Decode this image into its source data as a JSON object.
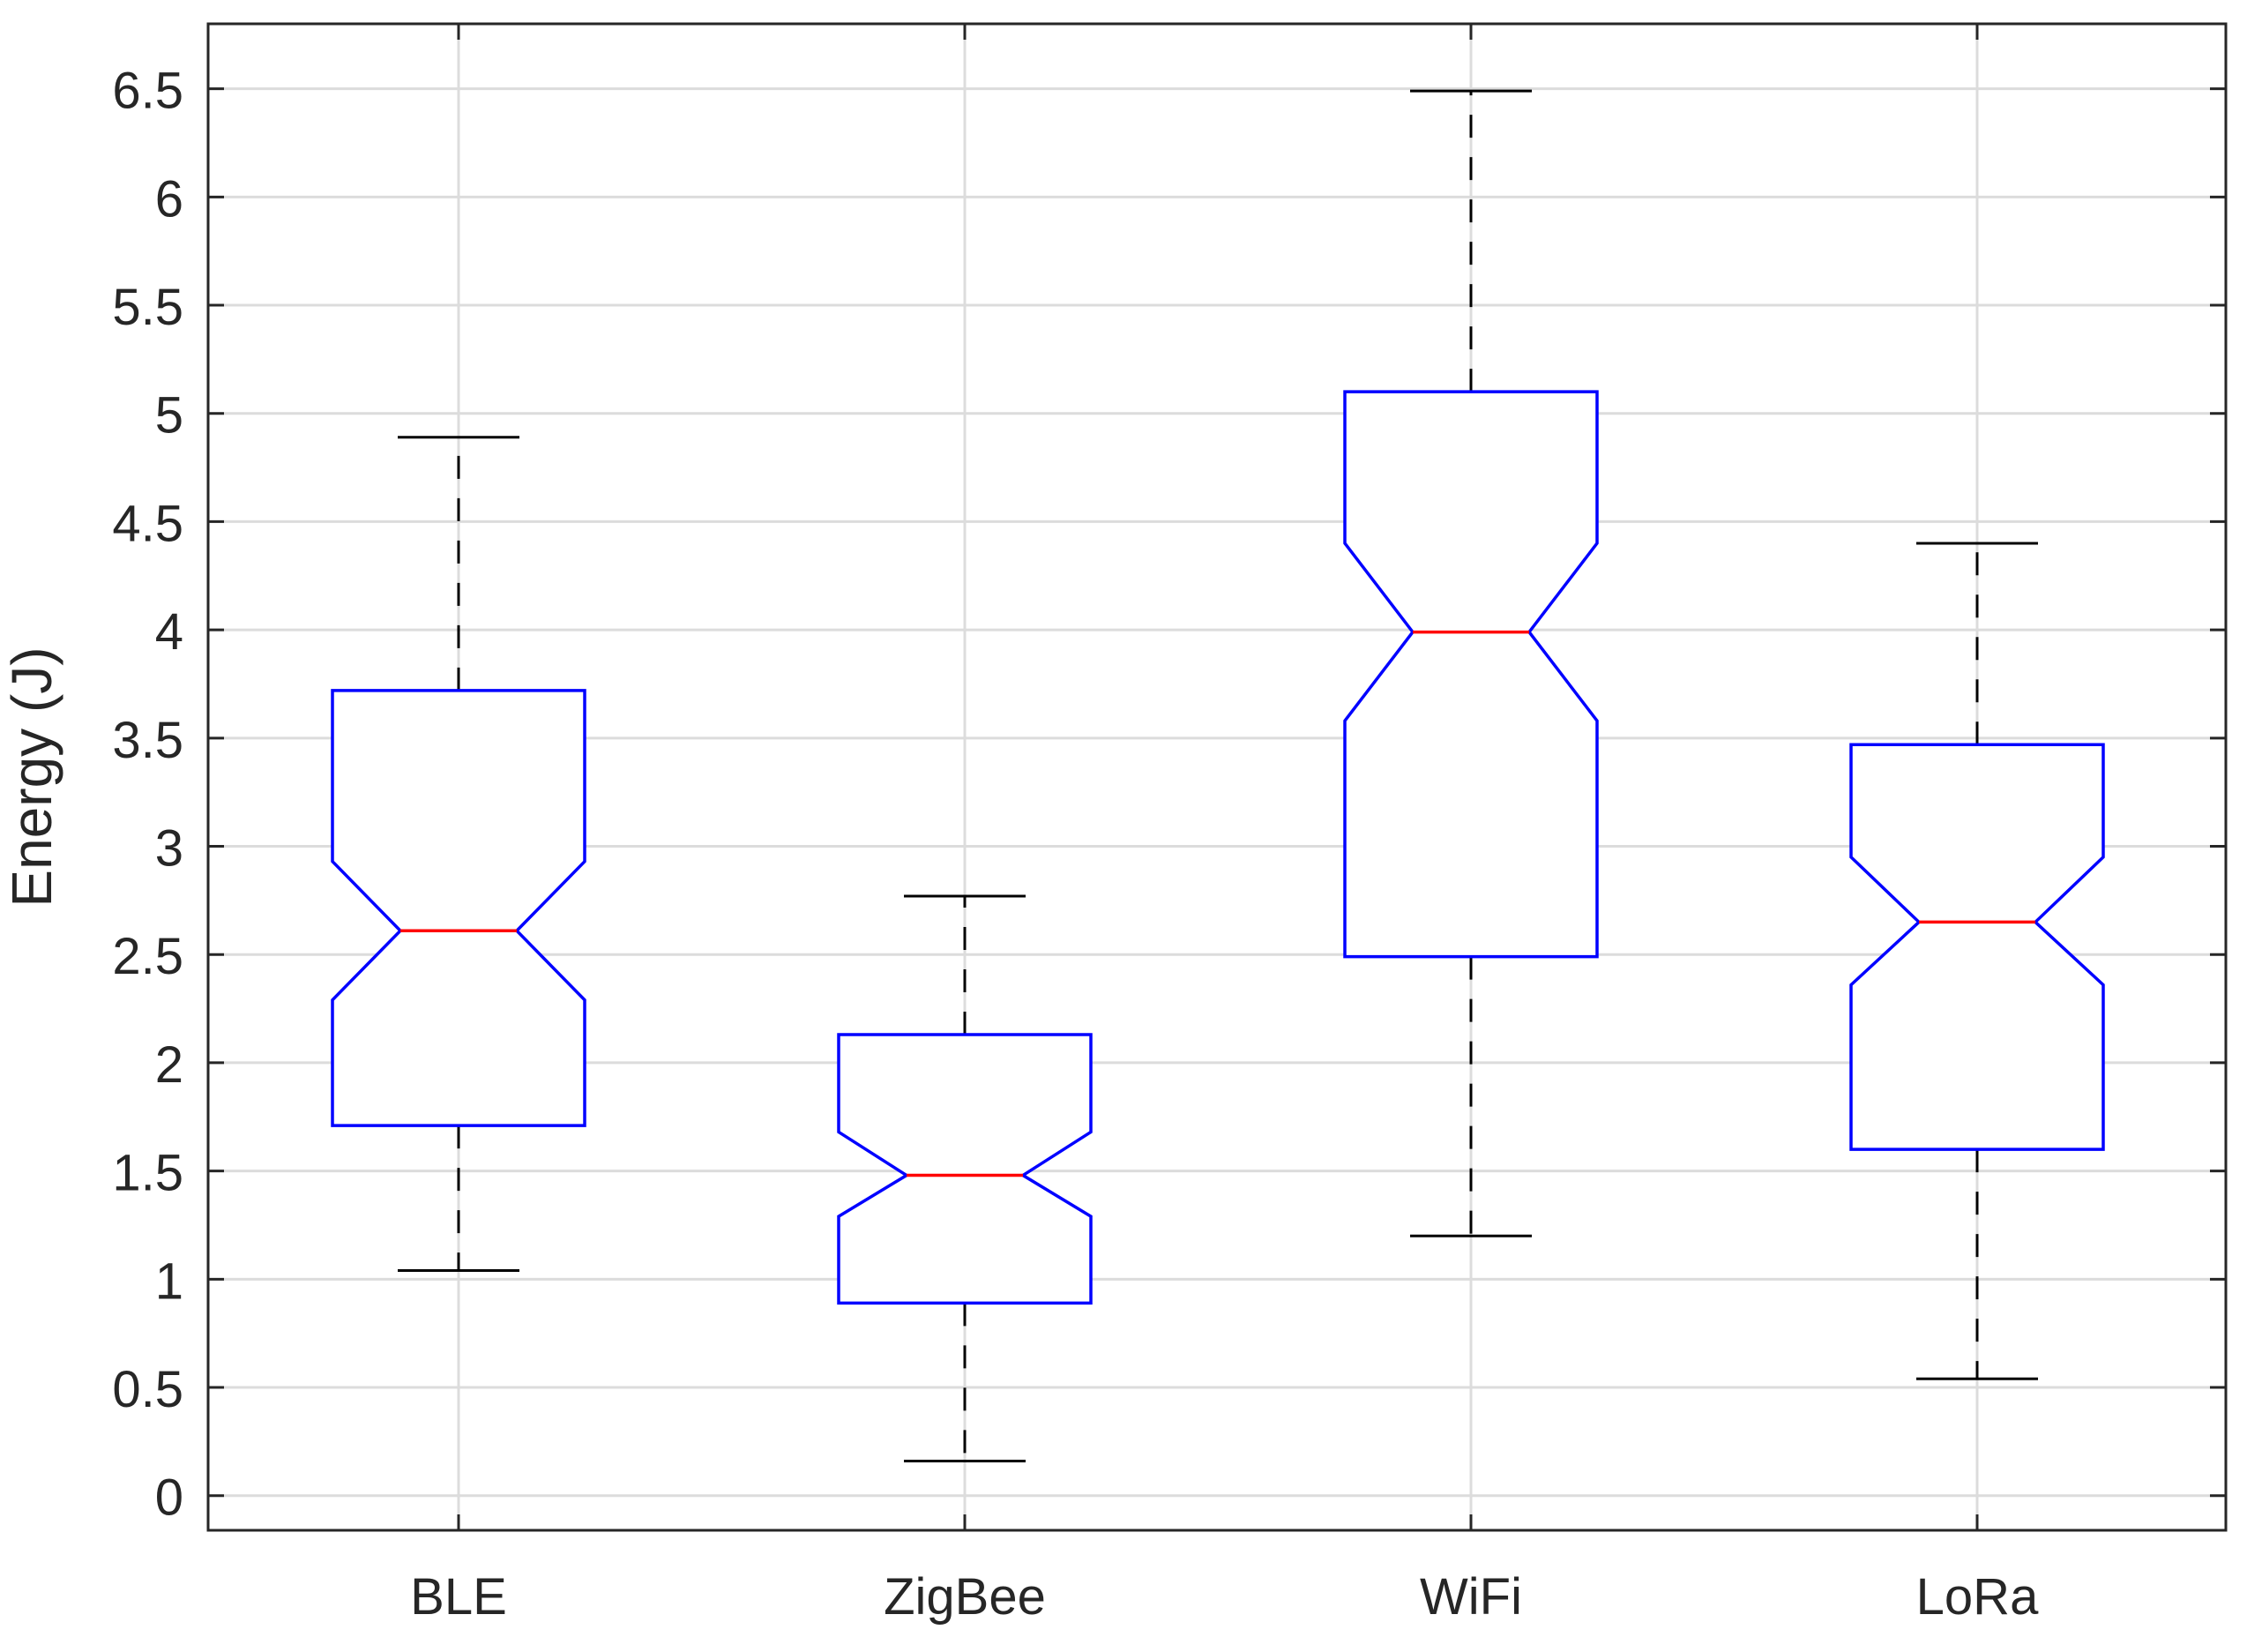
{
  "chart_data": {
    "type": "boxplot",
    "notched": true,
    "title": "",
    "xlabel": "",
    "ylabel": "Energy (J)",
    "ylim": [
      -0.16,
      6.8
    ],
    "yticks": [
      "0",
      "0.5",
      "1",
      "1.5",
      "2",
      "2.5",
      "3",
      "3.5",
      "4",
      "4.5",
      "5",
      "5.5",
      "6",
      "6.5"
    ],
    "ytick_values": [
      0,
      0.5,
      1,
      1.5,
      2,
      2.5,
      3,
      3.5,
      4,
      4.5,
      5,
      5.5,
      6,
      6.5
    ],
    "grid": true,
    "categories": [
      "BLE",
      "ZigBee",
      "WiFi",
      "LoRa"
    ],
    "boxes": [
      {
        "category": "BLE",
        "whisker_low": 1.04,
        "q1": 1.71,
        "notch_low": 2.29,
        "median": 2.61,
        "notch_high": 2.93,
        "q3": 3.72,
        "whisker_high": 4.89
      },
      {
        "category": "ZigBee",
        "whisker_low": 0.16,
        "q1": 0.89,
        "notch_low": 1.29,
        "median": 1.48,
        "notch_high": 1.68,
        "q3": 2.13,
        "whisker_high": 2.77
      },
      {
        "category": "WiFi",
        "whisker_low": 1.2,
        "q1": 2.49,
        "notch_low": 3.58,
        "median": 3.99,
        "notch_high": 4.4,
        "q3": 5.1,
        "whisker_high": 6.49
      },
      {
        "category": "LoRa",
        "whisker_low": 0.54,
        "q1": 1.6,
        "notch_low": 2.36,
        "median": 2.65,
        "notch_high": 2.95,
        "q3": 3.47,
        "whisker_high": 4.4
      }
    ],
    "colors": {
      "box": "#0000ff",
      "median": "#ff0000",
      "whisker": "#000000",
      "grid": "#dcdcdc",
      "axis": "#262626"
    }
  }
}
